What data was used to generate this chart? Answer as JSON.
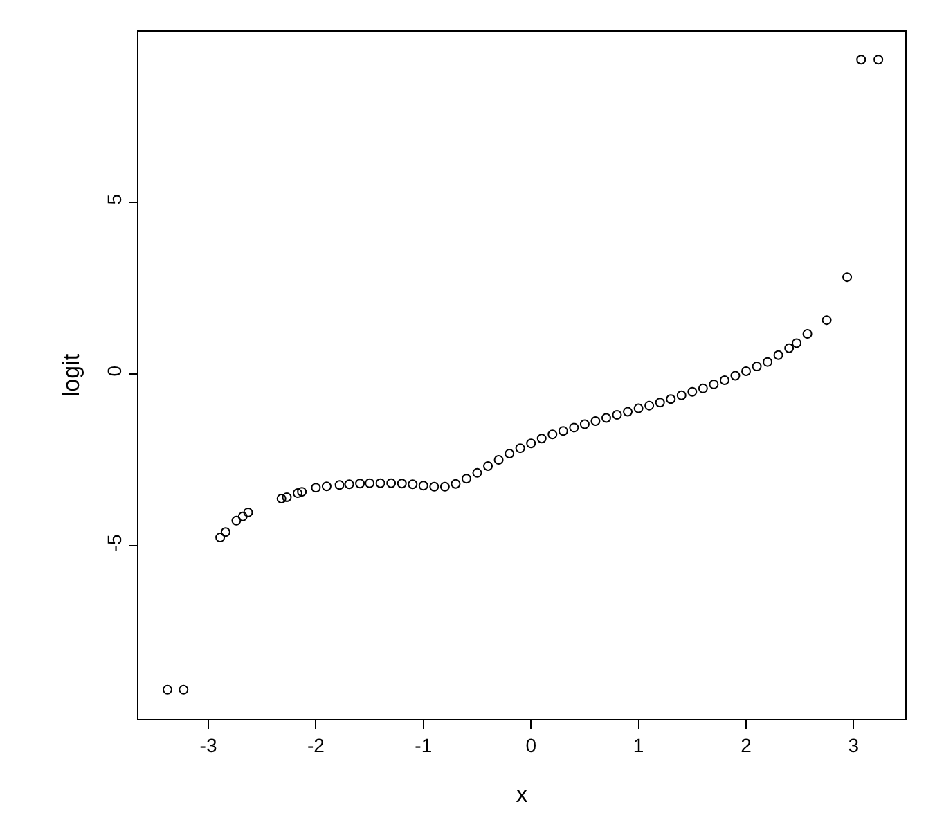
{
  "chart_data": {
    "type": "scatter",
    "xlabel": "x",
    "ylabel": "logit",
    "marker": "circle",
    "xlim": [
      -3.65,
      3.48
    ],
    "ylim": [
      -10.04,
      9.96
    ],
    "xticks": [
      -3,
      -2,
      -1,
      0,
      1,
      2,
      3
    ],
    "yticks": [
      -5,
      0,
      5
    ],
    "x": [
      -3.38,
      -3.23,
      -2.89,
      -2.84,
      -2.74,
      -2.68,
      -2.63,
      -2.32,
      -2.27,
      -2.17,
      -2.13,
      -2.0,
      -1.9,
      -1.78,
      -1.69,
      -1.59,
      -1.5,
      -1.4,
      -1.3,
      -1.2,
      -1.1,
      -1.0,
      -0.9,
      -0.8,
      -0.7,
      -0.6,
      -0.5,
      -0.4,
      -0.3,
      -0.2,
      -0.1,
      0,
      0.1,
      0.2,
      0.3,
      0.4,
      0.5,
      0.6,
      0.7,
      0.8,
      0.9,
      1.0,
      1.1,
      1.2,
      1.3,
      1.4,
      1.5,
      1.6,
      1.7,
      1.8,
      1.9,
      2.0,
      2.1,
      2.2,
      2.3,
      2.4,
      2.47,
      2.57,
      2.75,
      2.94,
      3.07,
      3.23
    ],
    "series": [
      {
        "color": "#000000",
        "values": [
          -9.19,
          -9.19,
          -4.76,
          -4.6,
          -4.27,
          -4.15,
          -4.03,
          -3.63,
          -3.59,
          -3.47,
          -3.43,
          -3.31,
          -3.27,
          -3.23,
          -3.21,
          -3.19,
          -3.18,
          -3.18,
          -3.18,
          -3.19,
          -3.21,
          -3.25,
          -3.28,
          -3.28,
          -3.2,
          -3.05,
          -2.88,
          -2.68,
          -2.5,
          -2.32,
          -2.16,
          -2.02,
          -1.88,
          -1.76,
          -1.66,
          -1.56,
          -1.46,
          -1.37,
          -1.28,
          -1.19,
          -1.1,
          -1.0,
          -0.92,
          -0.83,
          -0.73,
          -0.62,
          -0.52,
          -0.42,
          -0.3,
          -0.18,
          -0.05,
          0.08,
          0.22,
          0.35,
          0.55,
          0.75,
          0.9,
          1.17,
          1.57,
          2.82,
          9.15,
          9.15
        ]
      }
    ]
  }
}
